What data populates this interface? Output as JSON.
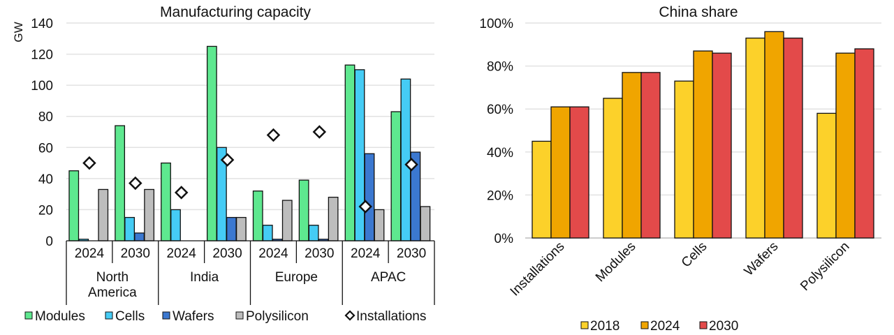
{
  "chart_data": [
    {
      "type": "bar",
      "title": "Manufacturing capacity",
      "ylabel": "GW",
      "ylim": [
        0,
        140
      ],
      "yticks": [
        "0",
        "20",
        "40",
        "60",
        "80",
        "100",
        "120",
        "140"
      ],
      "grid": true,
      "legend_placement": "bottom",
      "groups": [
        {
          "region": [
            "North",
            "America"
          ],
          "years": [
            "2024",
            "2030"
          ]
        },
        {
          "region": [
            "India"
          ],
          "years": [
            "2024",
            "2030"
          ]
        },
        {
          "region": [
            "Europe"
          ],
          "years": [
            "2024",
            "2030"
          ]
        },
        {
          "region": [
            "APAC"
          ],
          "years": [
            "2024",
            "2030"
          ]
        }
      ],
      "categories": [
        "North America 2024",
        "North America 2030",
        "India 2024",
        "India 2030",
        "Europe 2024",
        "Europe 2030",
        "APAC 2024",
        "APAC 2030"
      ],
      "series": [
        {
          "name": "Modules",
          "kind": "bar",
          "color": "#5EE88F",
          "values": [
            45,
            74,
            50,
            125,
            32,
            39,
            113,
            83
          ]
        },
        {
          "name": "Cells",
          "kind": "bar",
          "color": "#45CCF5",
          "values": [
            1,
            15,
            20,
            60,
            10,
            10,
            110,
            104
          ]
        },
        {
          "name": "Wafers",
          "kind": "bar",
          "color": "#3B78D0",
          "values": [
            0,
            5,
            0,
            15,
            1,
            1,
            56,
            57
          ]
        },
        {
          "name": "Polysilicon",
          "kind": "bar",
          "color": "#BDBDBD",
          "values": [
            33,
            33,
            0,
            15,
            26,
            28,
            20,
            22
          ]
        },
        {
          "name": "Installations",
          "kind": "marker",
          "color": "#FFFFFF",
          "values": [
            50,
            37,
            31,
            52,
            68,
            70,
            22,
            49
          ]
        }
      ]
    },
    {
      "type": "bar",
      "title": "China share",
      "ylim": [
        0,
        100
      ],
      "yticks": [
        "0%",
        "20%",
        "40%",
        "60%",
        "80%",
        "100%"
      ],
      "grid": true,
      "legend_placement": "bottom",
      "categories": [
        "Installations",
        "Modules",
        "Cells",
        "Wafers",
        "Polysilicon"
      ],
      "series": [
        {
          "name": "2018",
          "color": "#FCD12A",
          "values": [
            45,
            65,
            73,
            93,
            58
          ]
        },
        {
          "name": "2024",
          "color": "#F0A500",
          "values": [
            61,
            77,
            87,
            96,
            86
          ]
        },
        {
          "name": "2030",
          "color": "#E34A4A",
          "values": [
            61,
            77,
            86,
            93,
            88
          ]
        }
      ]
    }
  ]
}
